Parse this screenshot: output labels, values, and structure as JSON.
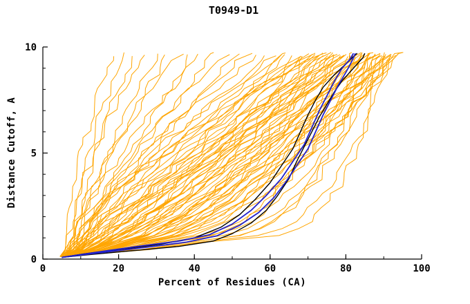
{
  "chart_data": {
    "type": "line",
    "title": "T0949-D1",
    "xlabel": "Percent of Residues (CA)",
    "ylabel": "Distance Cutoff, A",
    "xlim": [
      0,
      100
    ],
    "ylim": [
      0,
      10
    ],
    "x_ticks": [
      0,
      20,
      40,
      60,
      80,
      100
    ],
    "x_minor_step": 10,
    "y_ticks": [
      0,
      5,
      10
    ],
    "y_minor_step": 1,
    "grid": false,
    "legend": "none",
    "colors": {
      "ensemble": "#FFA500",
      "highlight_black": "#000000",
      "highlight_blue": "#2222CC",
      "axis": "#000000",
      "text": "#000000",
      "background": "#FFFFFF"
    },
    "ensemble_curves": [
      [
        6,
        18,
        1.5
      ],
      [
        7,
        21,
        1.4
      ],
      [
        8,
        24,
        1.35
      ],
      [
        7,
        27,
        1.5
      ],
      [
        9,
        30,
        1.25
      ],
      [
        10,
        33,
        1.3
      ],
      [
        8,
        36,
        1.4
      ],
      [
        11,
        39,
        1.15
      ],
      [
        9,
        42,
        1.35
      ],
      [
        12,
        45,
        1.2
      ],
      [
        10,
        48,
        1.3
      ],
      [
        13,
        51,
        1.1
      ],
      [
        11,
        54,
        1.25
      ],
      [
        8,
        57,
        1.3
      ],
      [
        10,
        59,
        1.15
      ],
      [
        12,
        61,
        1.1
      ],
      [
        9,
        63,
        1.3
      ],
      [
        14,
        64,
        0.95
      ],
      [
        11,
        65,
        1.15
      ],
      [
        15,
        66,
        1.0
      ],
      [
        13,
        67,
        1.15
      ],
      [
        16,
        68,
        0.9
      ],
      [
        12,
        69,
        1.1
      ],
      [
        18,
        70,
        0.85
      ],
      [
        14,
        71,
        1.0
      ],
      [
        20,
        72,
        0.9
      ],
      [
        16,
        73,
        1.05
      ],
      [
        22,
        73,
        0.8
      ],
      [
        10,
        74,
        1.35
      ],
      [
        24,
        74,
        0.8
      ],
      [
        17,
        75,
        1.0
      ],
      [
        19,
        75,
        0.9
      ],
      [
        26,
        76,
        0.7
      ],
      [
        12,
        77,
        1.05
      ],
      [
        15,
        77,
        0.95
      ],
      [
        18,
        78,
        0.85
      ],
      [
        20,
        78,
        0.9
      ],
      [
        22,
        79,
        0.8
      ],
      [
        25,
        79,
        0.72
      ],
      [
        14,
        80,
        1.1
      ],
      [
        16,
        80,
        1.0
      ],
      [
        28,
        81,
        0.7
      ],
      [
        18,
        81,
        0.9
      ],
      [
        30,
        82,
        0.62
      ],
      [
        20,
        82,
        0.85
      ],
      [
        24,
        83,
        0.75
      ],
      [
        26,
        83,
        0.78
      ],
      [
        32,
        84,
        0.6
      ],
      [
        15,
        84,
        1.0
      ],
      [
        22,
        85,
        0.88
      ],
      [
        28,
        85,
        0.7
      ],
      [
        36,
        86,
        0.5
      ],
      [
        18,
        86,
        0.92
      ],
      [
        25,
        86,
        0.78
      ],
      [
        30,
        87,
        0.68
      ],
      [
        38,
        88,
        0.45
      ],
      [
        20,
        88,
        0.88
      ],
      [
        27,
        88,
        0.75
      ],
      [
        33,
        89,
        0.62
      ],
      [
        23,
        89,
        0.8
      ],
      [
        29,
        90,
        0.7
      ],
      [
        40,
        90,
        0.42
      ],
      [
        26,
        91,
        0.74
      ],
      [
        31,
        91,
        0.66
      ],
      [
        35,
        92,
        0.6
      ],
      [
        21,
        92,
        0.85
      ],
      [
        28,
        93,
        0.7
      ],
      [
        44,
        89,
        0.4
      ],
      [
        24,
        94,
        0.78
      ],
      [
        33,
        94,
        0.62
      ],
      [
        30,
        95,
        0.66
      ],
      [
        45,
        86,
        0.38
      ],
      [
        13,
        85,
        1.05
      ],
      [
        11,
        79,
        1.2
      ],
      [
        9,
        72,
        1.35
      ],
      [
        50,
        90,
        0.28
      ],
      [
        47,
        92,
        0.35
      ],
      [
        39,
        84,
        0.48
      ]
    ],
    "highlighted": [
      {
        "name": "model-curve-black-1",
        "color": "#000000",
        "width": 1.4,
        "points": [
          [
            5,
            0.08
          ],
          [
            13,
            0.22
          ],
          [
            24,
            0.4
          ],
          [
            36,
            0.6
          ],
          [
            45,
            0.85
          ],
          [
            50,
            1.2
          ],
          [
            55,
            1.7
          ],
          [
            59,
            2.3
          ],
          [
            62,
            3.0
          ],
          [
            65,
            3.8
          ],
          [
            67,
            4.6
          ],
          [
            69,
            5.3
          ],
          [
            71,
            6.0
          ],
          [
            73,
            6.7
          ],
          [
            75,
            7.3
          ],
          [
            77,
            7.9
          ],
          [
            79,
            8.4
          ],
          [
            81,
            8.8
          ],
          [
            83,
            9.2
          ],
          [
            84.5,
            9.5
          ],
          [
            85,
            9.7
          ]
        ]
      },
      {
        "name": "model-curve-black-2",
        "color": "#000000",
        "width": 1.4,
        "points": [
          [
            5,
            0.08
          ],
          [
            11,
            0.25
          ],
          [
            20,
            0.45
          ],
          [
            31,
            0.7
          ],
          [
            40,
            1.0
          ],
          [
            47,
            1.5
          ],
          [
            52,
            2.1
          ],
          [
            56,
            2.8
          ],
          [
            60,
            3.6
          ],
          [
            63,
            4.4
          ],
          [
            66,
            5.2
          ],
          [
            68,
            6.0
          ],
          [
            70,
            6.8
          ],
          [
            72,
            7.5
          ],
          [
            74,
            8.1
          ],
          [
            77,
            8.7
          ],
          [
            80,
            9.2
          ],
          [
            82,
            9.55
          ],
          [
            83,
            9.7
          ]
        ]
      },
      {
        "name": "model-curve-blue-1",
        "color": "#2222CC",
        "width": 1.8,
        "points": [
          [
            5,
            0.08
          ],
          [
            15,
            0.3
          ],
          [
            27,
            0.55
          ],
          [
            38,
            0.8
          ],
          [
            46,
            1.1
          ],
          [
            52,
            1.6
          ],
          [
            57,
            2.2
          ],
          [
            61,
            2.9
          ],
          [
            64,
            3.6
          ],
          [
            67,
            4.4
          ],
          [
            70,
            5.2
          ],
          [
            72,
            6.0
          ],
          [
            74,
            6.8
          ],
          [
            76,
            7.5
          ],
          [
            78,
            8.2
          ],
          [
            80,
            8.8
          ],
          [
            81.5,
            9.3
          ],
          [
            82.5,
            9.7
          ]
        ]
      },
      {
        "name": "model-curve-blue-2",
        "color": "#2222CC",
        "width": 1.8,
        "points": [
          [
            5,
            0.08
          ],
          [
            14,
            0.32
          ],
          [
            25,
            0.6
          ],
          [
            36,
            0.85
          ],
          [
            44,
            1.15
          ],
          [
            50,
            1.65
          ],
          [
            55,
            2.3
          ],
          [
            59,
            3.0
          ],
          [
            63,
            3.8
          ],
          [
            66,
            4.6
          ],
          [
            69,
            5.4
          ],
          [
            71,
            6.2
          ],
          [
            73,
            7.0
          ],
          [
            75,
            7.7
          ],
          [
            77,
            8.4
          ],
          [
            79,
            9.0
          ],
          [
            81,
            9.4
          ],
          [
            82,
            9.7
          ]
        ]
      }
    ]
  }
}
